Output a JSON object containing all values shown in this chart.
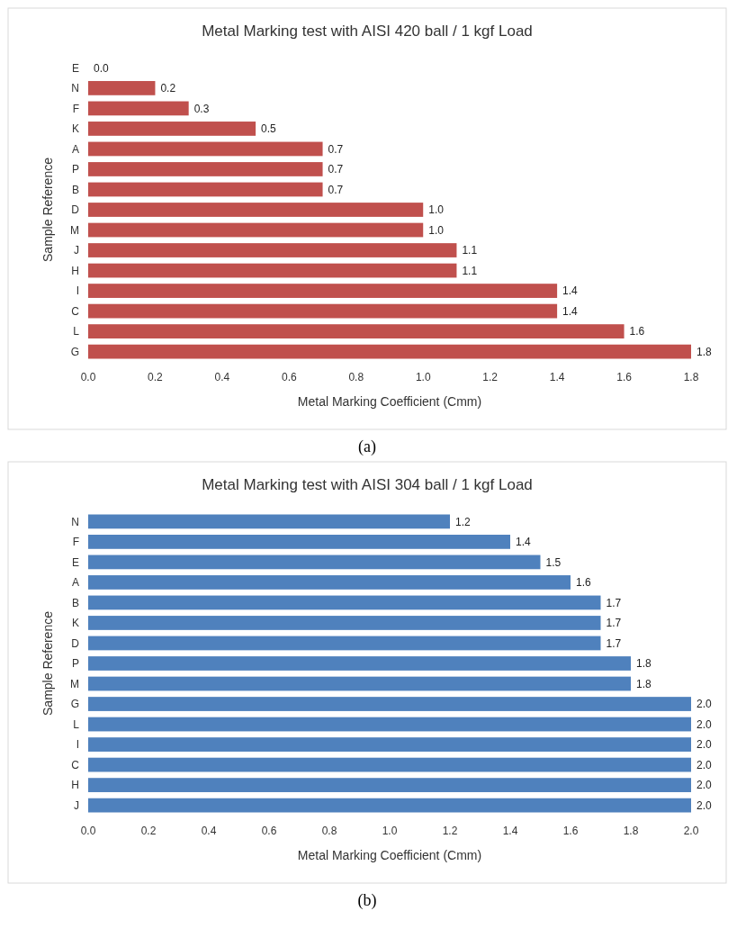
{
  "chart_data": [
    {
      "type": "bar",
      "orientation": "horizontal",
      "title": "Metal Marking test with AISI 420 ball  / 1 kgf Load",
      "xlabel": "Metal Marking Coefficient (Cmm)",
      "ylabel": "Sample Reference",
      "categories": [
        "E",
        "N",
        "F",
        "K",
        "A",
        "P",
        "B",
        "D",
        "M",
        "J",
        "H",
        "I",
        "C",
        "L",
        "G"
      ],
      "values": [
        0.0,
        0.2,
        0.3,
        0.5,
        0.7,
        0.7,
        0.7,
        1.0,
        1.0,
        1.1,
        1.1,
        1.4,
        1.4,
        1.6,
        1.8
      ],
      "color": "#c0504d",
      "value_labels": [
        "0.0",
        "0.2",
        "0.3",
        "0.5",
        "0.7",
        "0.7",
        "0.7",
        "1.0",
        "1.0",
        "1.1",
        "1.1",
        "1.4",
        "1.4",
        "1.6",
        "1.8"
      ],
      "xlim": [
        0,
        1.8
      ],
      "xticks": [
        {
          "value": 0,
          "label": "0.0"
        },
        {
          "value": 0.2,
          "label": "0.2"
        },
        {
          "value": 0.4,
          "label": "0.4"
        },
        {
          "value": 0.6,
          "label": "0.6"
        },
        {
          "value": 0.8,
          "label": "0.8"
        },
        {
          "value": 1,
          "label": "1.0"
        },
        {
          "value": 1.2,
          "label": "1.2"
        },
        {
          "value": 1.4,
          "label": "1.4"
        },
        {
          "value": 1.6,
          "label": "1.6"
        },
        {
          "value": 1.8,
          "label": "1.8"
        }
      ],
      "annotations": [
        "(a)"
      ]
    },
    {
      "type": "bar",
      "orientation": "horizontal",
      "title": "Metal Marking test with AISI 304 ball  / 1 kgf Load",
      "xlabel": "Metal Marking Coefficient (Cmm)",
      "ylabel": "Sample Reference",
      "categories": [
        "N",
        "F",
        "E",
        "A",
        "B",
        "K",
        "D",
        "P",
        "M",
        "G",
        "L",
        "I",
        "C",
        "H",
        "J"
      ],
      "values": [
        1.2,
        1.4,
        1.5,
        1.6,
        1.7,
        1.7,
        1.7,
        1.8,
        1.8,
        2.0,
        2.0,
        2.0,
        2.0,
        2.0,
        2.0
      ],
      "color": "#4f81bd",
      "value_labels": [
        "1.2",
        "1.4",
        "1.5",
        "1.6",
        "1.7",
        "1.7",
        "1.7",
        "1.8",
        "1.8",
        "2.0",
        "2.0",
        "2.0",
        "2.0",
        "2.0",
        "2.0"
      ],
      "xlim": [
        0,
        2
      ],
      "xticks": [
        {
          "value": 0,
          "label": "0.0"
        },
        {
          "value": 0.2,
          "label": "0.2"
        },
        {
          "value": 0.4,
          "label": "0.4"
        },
        {
          "value": 0.6,
          "label": "0.6"
        },
        {
          "value": 0.8,
          "label": "0.8"
        },
        {
          "value": 1,
          "label": "1.0"
        },
        {
          "value": 1.2,
          "label": "1.2"
        },
        {
          "value": 1.4,
          "label": "1.4"
        },
        {
          "value": 1.6,
          "label": "1.6"
        },
        {
          "value": 1.8,
          "label": "1.8"
        },
        {
          "value": 2,
          "label": "2.0"
        }
      ],
      "annotations": [
        "(b)"
      ]
    }
  ]
}
